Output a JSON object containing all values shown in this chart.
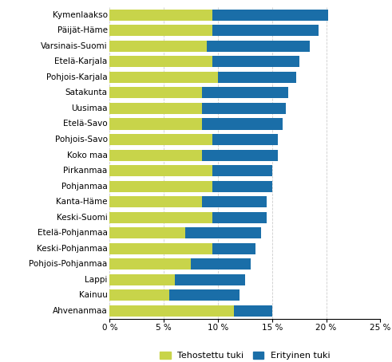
{
  "categories": [
    "Kymenlaakso",
    "Päijät-Häme",
    "Varsinais-Suomi",
    "Etelä-Karjala",
    "Pohjois-Karjala",
    "Satakunta",
    "Uusimaa",
    "Etelä-Savo",
    "Pohjois-Savo",
    "Koko maa",
    "Pirkanmaa",
    "Pohjanmaa",
    "Kanta-Häme",
    "Keski-Suomi",
    "Etelä-Pohjanmaa",
    "Keski-Pohjanmaa",
    "Pohjois-Pohjanmaa",
    "Lappi",
    "Kainuu",
    "Ahvenanmaa"
  ],
  "tehostettu": [
    9.5,
    9.5,
    9.0,
    9.5,
    10.0,
    8.5,
    8.5,
    8.5,
    9.5,
    8.5,
    9.5,
    9.5,
    8.5,
    9.5,
    7.0,
    9.5,
    7.5,
    6.0,
    5.5,
    11.5
  ],
  "erityinen": [
    10.7,
    9.8,
    9.5,
    8.0,
    7.2,
    8.0,
    7.8,
    7.5,
    6.0,
    7.0,
    5.5,
    5.5,
    6.0,
    5.0,
    7.0,
    4.0,
    5.5,
    6.5,
    6.5,
    3.5
  ],
  "color_tehostettu": "#c8d44a",
  "color_erityinen": "#1a6ea8",
  "xlim": [
    0,
    25
  ],
  "xticks": [
    0,
    5,
    10,
    15,
    20,
    25
  ],
  "xticklabels": [
    "0 %",
    "5 %",
    "10 %",
    "15 %",
    "20 %",
    "25 %"
  ],
  "legend_labels": [
    "Tehostettu tuki",
    "Erityinen tuki"
  ],
  "background_color": "#ffffff",
  "bar_height": 0.72,
  "grid_color": "#cccccc",
  "font_size": 7.5,
  "legend_font_size": 8.0,
  "tick_font_size": 7.5
}
